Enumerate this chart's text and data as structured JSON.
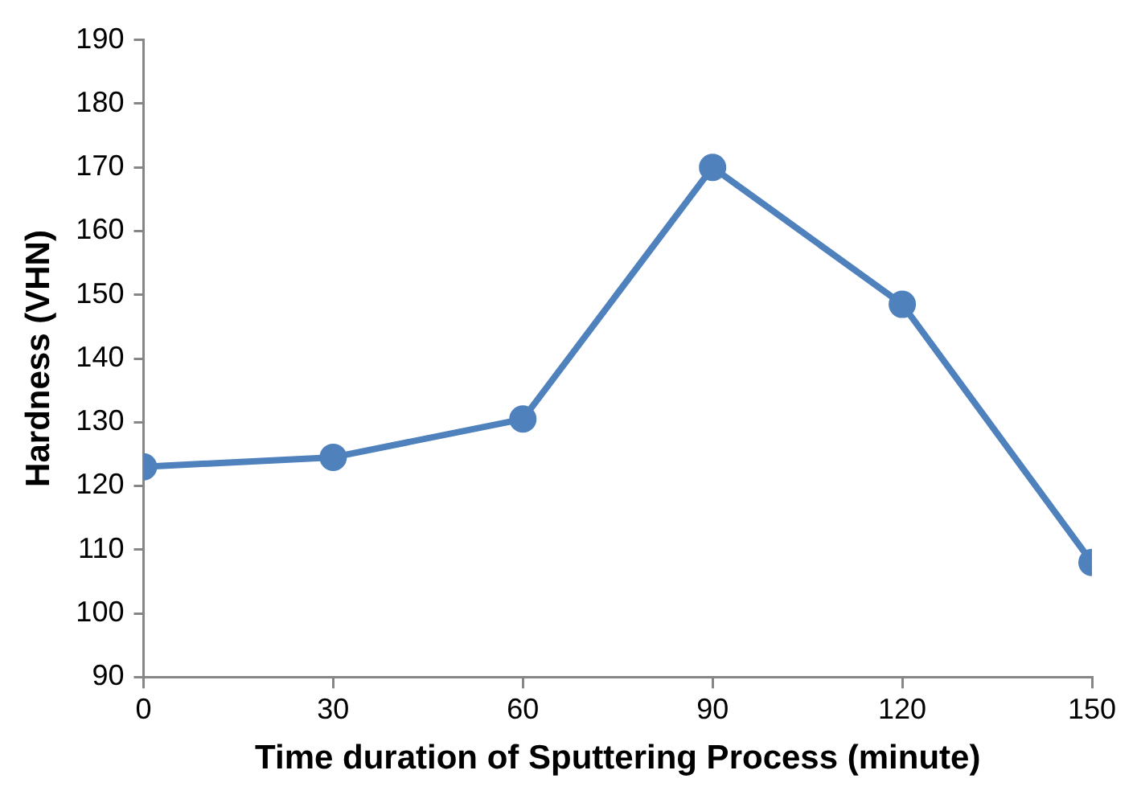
{
  "chart_data": {
    "type": "line",
    "xlabel": "Time duration of Sputtering Process (minute)",
    "ylabel": "Hardness (VHN)",
    "x": [
      0,
      30,
      60,
      90,
      120,
      150
    ],
    "series": [
      {
        "color": "#4f81bd",
        "values": [
          123,
          124.5,
          130.5,
          170,
          148.5,
          108
        ]
      }
    ],
    "xlim": [
      0,
      150
    ],
    "xticks": [
      0,
      30,
      60,
      90,
      120,
      150
    ],
    "ylim": [
      90,
      190
    ],
    "yticks": [
      90,
      100,
      110,
      120,
      130,
      140,
      150,
      160,
      170,
      180,
      190
    ],
    "grid": false,
    "legend": false,
    "marker": "circle",
    "line_style": "solid"
  }
}
